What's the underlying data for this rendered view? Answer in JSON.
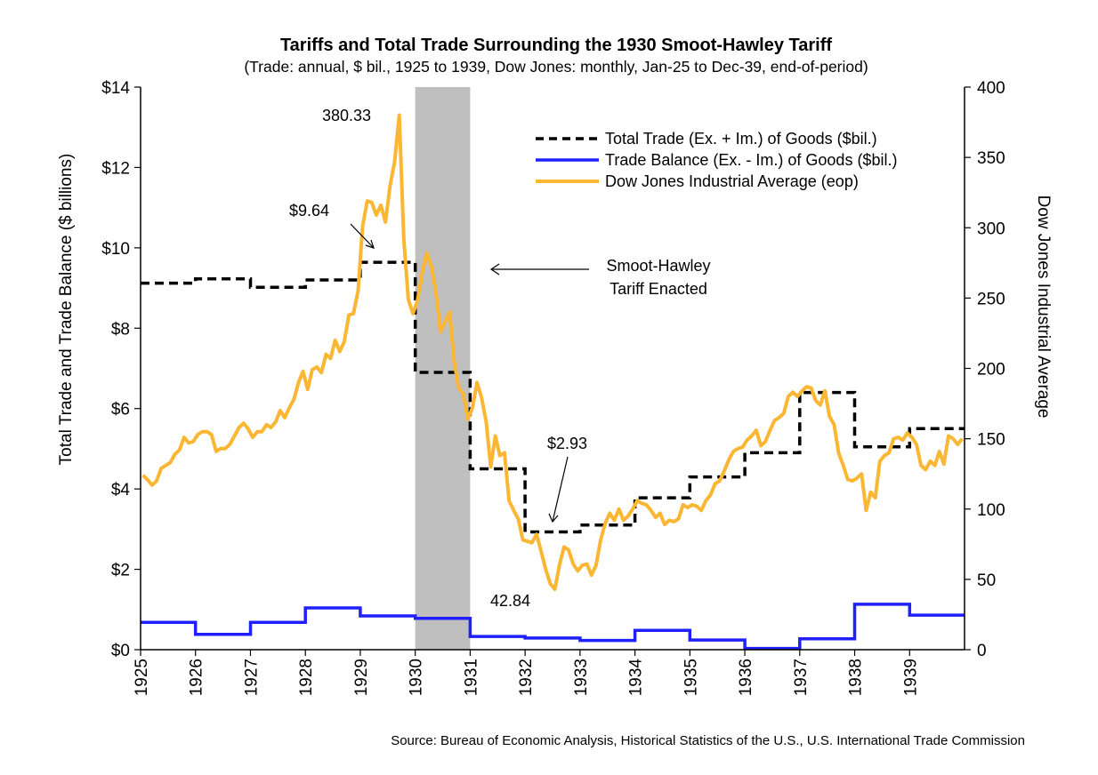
{
  "chart_data": {
    "type": "line",
    "title": "Tariffs and Total Trade Surrounding the 1930 Smoot-Hawley Tariff",
    "subtitle": "(Trade: annual, $ bil., 1925 to 1939, Dow Jones: monthly, Jan-25 to Dec-39, end-of-period)",
    "ylabel": "Total Trade and Trade Balance ($ billions)",
    "y2label": "Dow Jones Industrial Average",
    "source": "Source: Bureau of Economic Analysis, Historical Statistics of the U.S., U.S. International Trade Commission",
    "xlim": [
      1925,
      1940
    ],
    "ylim": [
      0,
      14
    ],
    "y2lim": [
      0,
      400
    ],
    "x_ticks": [
      "1925",
      "1926",
      "1927",
      "1928",
      "1929",
      "1930",
      "1931",
      "1932",
      "1933",
      "1934",
      "1935",
      "1936",
      "1937",
      "1938",
      "1939"
    ],
    "y_ticks": [
      "$0",
      "$2",
      "$4",
      "$6",
      "$8",
      "$10",
      "$12",
      "$14"
    ],
    "y_tick_values": [
      0,
      2,
      4,
      6,
      8,
      10,
      12,
      14
    ],
    "y2_ticks": [
      "0",
      "50",
      "100",
      "150",
      "200",
      "250",
      "300",
      "350",
      "400"
    ],
    "y2_tick_values": [
      0,
      50,
      100,
      150,
      200,
      250,
      300,
      350,
      400
    ],
    "grid": false,
    "legend_position": "top-right",
    "shaded_region": {
      "from": 1930.0,
      "to": 1931.0,
      "color": "#bfbfbf"
    },
    "series": [
      {
        "name": "Total Trade (Ex. + Im.) of Goods ($bil.)",
        "axis": "left",
        "style": "dashed",
        "color": "#000000",
        "x": [
          1925,
          1926,
          1927,
          1928,
          1929,
          1930,
          1931,
          1932,
          1933,
          1934,
          1935,
          1936,
          1937,
          1938,
          1939
        ],
        "values": [
          9.12,
          9.23,
          9.02,
          9.2,
          9.64,
          6.9,
          4.5,
          2.93,
          3.1,
          3.78,
          4.3,
          4.9,
          6.4,
          5.05,
          5.5
        ]
      },
      {
        "name": "Trade Balance (Ex. - Im.) of Goods ($bil.)",
        "axis": "left",
        "style": "solid",
        "color": "#1f1fff",
        "x": [
          1925,
          1926,
          1927,
          1928,
          1929,
          1930,
          1931,
          1932,
          1933,
          1934,
          1935,
          1936,
          1937,
          1938,
          1939
        ],
        "values": [
          0.68,
          0.38,
          0.68,
          1.04,
          0.84,
          0.78,
          0.33,
          0.29,
          0.23,
          0.48,
          0.24,
          0.03,
          0.27,
          1.13,
          0.86
        ]
      },
      {
        "name": "Dow Jones Industrial Average (eop)",
        "axis": "right",
        "style": "solid",
        "color": "#fbb733",
        "x_start": 1925,
        "step_months": 1,
        "values": [
          124,
          121,
          117,
          120,
          129,
          131,
          133,
          139,
          142,
          151,
          147,
          148,
          153,
          155,
          155,
          153,
          141,
          143,
          143,
          146,
          152,
          158,
          161,
          157,
          151,
          155,
          155,
          160,
          158,
          162,
          170,
          165,
          172,
          178,
          190,
          198,
          185,
          199,
          201,
          197,
          210,
          207,
          220,
          212,
          219,
          238,
          239,
          255,
          301,
          319,
          318,
          309,
          316,
          304,
          330,
          347,
          380,
          292,
          249,
          239,
          248,
          268,
          282,
          273,
          255,
          226,
          233,
          240,
          205,
          186,
          182,
          164,
          172,
          190,
          179,
          162,
          130,
          152,
          138,
          140,
          106,
          99,
          93,
          78,
          77,
          76,
          82,
          70,
          57,
          47,
          43,
          60,
          73,
          71,
          61,
          56,
          60,
          61,
          53,
          60,
          78,
          90,
          97,
          92,
          100,
          92,
          95,
          100,
          106,
          104,
          103,
          99,
          94,
          97,
          89,
          92,
          91,
          93,
          103,
          101,
          103,
          102,
          99,
          106,
          110,
          118,
          120,
          127,
          135,
          141,
          143,
          144,
          149,
          152,
          156,
          145,
          148,
          156,
          163,
          165,
          168,
          180,
          183,
          180,
          184,
          187,
          186,
          177,
          174,
          184,
          166,
          160,
          140,
          131,
          121,
          120,
          122,
          125,
          99,
          112,
          108,
          134,
          138,
          140,
          150,
          151,
          149,
          154,
          151,
          146,
          131,
          128,
          134,
          131,
          141,
          132,
          152,
          150,
          146,
          150
        ]
      }
    ],
    "annotations": [
      {
        "text": "380.33"
      },
      {
        "text": "$9.64"
      },
      {
        "text": "$2.93"
      },
      {
        "text": "42.84"
      },
      {
        "text": "Smoot-Hawley"
      },
      {
        "text": "Tariff Enacted"
      }
    ]
  }
}
